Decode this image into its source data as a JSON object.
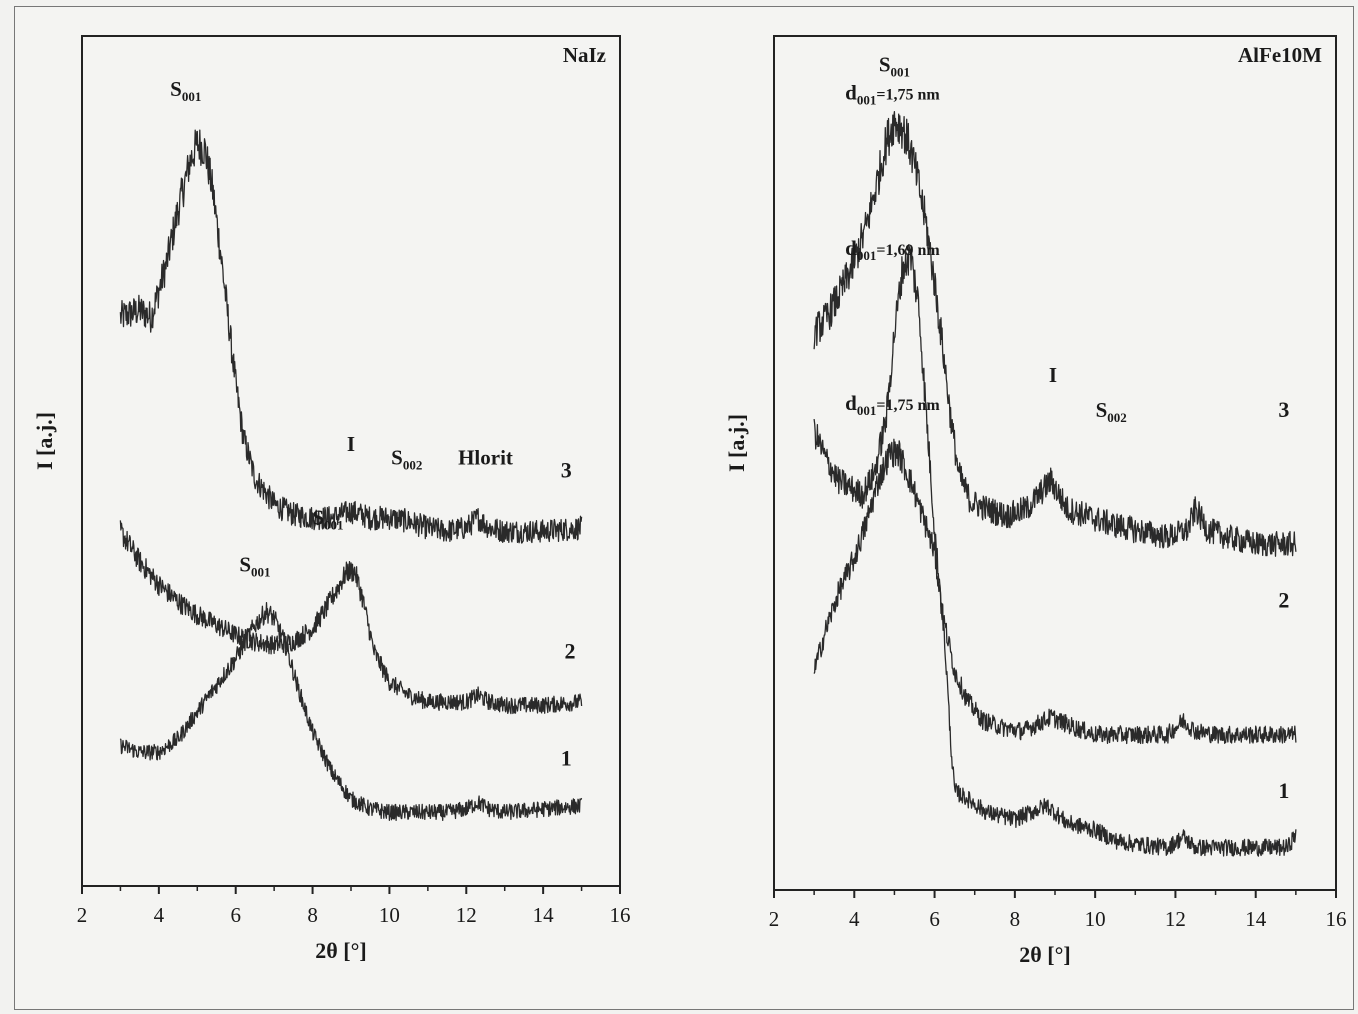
{
  "chart_data": [
    {
      "type": "line",
      "title": "NaIz",
      "xlabel": "2θ [°]",
      "ylabel": "I [a.j.]",
      "xlim": [
        2,
        16
      ],
      "xticks": [
        "2",
        "4",
        "6",
        "8",
        "10",
        "12",
        "14",
        "16"
      ],
      "grid": false,
      "series": [
        {
          "name": "3",
          "x": [
            3.0,
            3.5,
            3.8,
            4.2,
            4.5,
            4.8,
            5.0,
            5.2,
            5.4,
            5.6,
            5.8,
            6.0,
            6.2,
            6.5,
            7.0,
            7.5,
            8.0,
            8.5,
            9.0,
            9.5,
            10.0,
            10.5,
            11.0,
            11.5,
            12.0,
            12.3,
            12.6,
            13.0,
            14.0,
            15.0
          ],
          "y": [
            0.7,
            0.71,
            0.7,
            0.78,
            0.86,
            0.93,
            0.96,
            0.95,
            0.89,
            0.8,
            0.7,
            0.6,
            0.52,
            0.46,
            0.42,
            0.405,
            0.4,
            0.4,
            0.41,
            0.4,
            0.4,
            0.395,
            0.385,
            0.38,
            0.385,
            0.4,
            0.385,
            0.38,
            0.38,
            0.385
          ]
        },
        {
          "name": "2",
          "x": [
            3.0,
            3.5,
            4.0,
            4.5,
            5.0,
            5.5,
            6.0,
            6.5,
            7.0,
            7.5,
            8.0,
            8.3,
            8.6,
            8.9,
            9.1,
            9.3,
            9.6,
            10.0,
            10.5,
            11.0,
            11.5,
            12.0,
            12.3,
            12.6,
            13.0,
            14.0,
            15.0
          ],
          "y": [
            0.38,
            0.335,
            0.3,
            0.275,
            0.255,
            0.24,
            0.225,
            0.215,
            0.21,
            0.215,
            0.235,
            0.26,
            0.29,
            0.32,
            0.32,
            0.28,
            0.2,
            0.155,
            0.135,
            0.125,
            0.125,
            0.125,
            0.135,
            0.125,
            0.12,
            0.12,
            0.125
          ]
        },
        {
          "name": "1",
          "x": [
            3.0,
            3.5,
            4.0,
            4.5,
            5.0,
            5.5,
            6.0,
            6.5,
            6.8,
            7.0,
            7.3,
            7.6,
            8.0,
            8.5,
            9.0,
            9.5,
            10.0,
            10.5,
            11.0,
            11.5,
            12.0,
            12.3,
            12.6,
            13.0,
            14.0,
            15.0
          ],
          "y": [
            0.06,
            0.05,
            0.05,
            0.07,
            0.11,
            0.15,
            0.19,
            0.24,
            0.26,
            0.25,
            0.21,
            0.15,
            0.08,
            0.02,
            -0.02,
            -0.035,
            -0.04,
            -0.04,
            -0.04,
            -0.04,
            -0.035,
            -0.025,
            -0.035,
            -0.04,
            -0.035,
            -0.03
          ]
        }
      ],
      "annotations": [
        {
          "text": "S",
          "sub": "001",
          "x": 4.7,
          "y": 1.03
        },
        {
          "text": "I",
          "x": 9.0,
          "y": 0.5
        },
        {
          "text": "S",
          "sub": "002",
          "x": 10.45,
          "y": 0.48
        },
        {
          "text": "Hlorit",
          "x": 12.5,
          "y": 0.48
        },
        {
          "text": "3",
          "x": 14.6,
          "y": 0.46
        },
        {
          "text": "S",
          "sub": "001",
          "x": 8.4,
          "y": 0.39
        },
        {
          "text": "2",
          "x": 14.7,
          "y": 0.19
        },
        {
          "text": "S",
          "sub": "001",
          "x": 6.5,
          "y": 0.32
        },
        {
          "text": "1",
          "x": 14.6,
          "y": 0.03
        }
      ]
    },
    {
      "type": "line",
      "title": "AlFe10M",
      "xlabel": "2θ [°]",
      "ylabel": "I [a.j.]",
      "xlim": [
        2,
        16
      ],
      "xticks": [
        "2",
        "4",
        "6",
        "8",
        "10",
        "12",
        "14",
        "16"
      ],
      "grid": false,
      "series": [
        {
          "name": "3",
          "x": [
            3.0,
            3.3,
            3.6,
            4.0,
            4.3,
            4.6,
            4.8,
            5.0,
            5.2,
            5.4,
            5.6,
            5.8,
            6.0,
            6.2,
            6.4,
            6.6,
            6.9,
            7.3,
            7.8,
            8.3,
            8.9,
            9.3,
            9.8,
            10.3,
            11.0,
            11.8,
            12.3,
            12.5,
            12.8,
            13.3,
            14.0,
            15.0
          ],
          "y": [
            0.7,
            0.72,
            0.75,
            0.8,
            0.85,
            0.92,
            0.97,
            1.0,
            0.99,
            0.96,
            0.91,
            0.85,
            0.77,
            0.68,
            0.58,
            0.5,
            0.46,
            0.45,
            0.44,
            0.45,
            0.49,
            0.45,
            0.44,
            0.43,
            0.42,
            0.41,
            0.42,
            0.45,
            0.42,
            0.41,
            0.4,
            0.4
          ]
        },
        {
          "name": "2",
          "x": [
            3.0,
            3.3,
            3.6,
            3.9,
            4.2,
            4.5,
            4.8,
            5.0,
            5.2,
            5.4,
            5.6,
            5.8,
            6.0,
            6.2,
            6.5,
            6.8,
            7.2,
            7.7,
            8.2,
            8.9,
            9.5,
            10.0,
            11.0,
            11.8,
            12.2,
            12.5,
            13.0,
            14.0,
            15.0
          ],
          "y": [
            0.56,
            0.52,
            0.49,
            0.48,
            0.47,
            0.5,
            0.58,
            0.7,
            0.79,
            0.81,
            0.74,
            0.58,
            0.42,
            0.3,
            0.22,
            0.18,
            0.15,
            0.14,
            0.135,
            0.155,
            0.14,
            0.13,
            0.13,
            0.13,
            0.15,
            0.135,
            0.13,
            0.13,
            0.13
          ]
        },
        {
          "name": "1",
          "x": [
            3.0,
            3.3,
            3.6,
            4.0,
            4.3,
            4.6,
            4.9,
            5.1,
            5.4,
            5.7,
            6.0,
            6.2,
            6.3,
            6.4,
            6.5,
            6.8,
            7.3,
            8.0,
            8.8,
            9.3,
            10.0,
            10.5,
            11.0,
            11.8,
            12.2,
            12.5,
            13.0,
            14.0,
            14.8,
            15.0
          ],
          "y": [
            0.22,
            0.28,
            0.33,
            0.38,
            0.43,
            0.49,
            0.53,
            0.53,
            0.49,
            0.44,
            0.39,
            0.3,
            0.22,
            0.12,
            0.05,
            0.04,
            0.02,
            0.01,
            0.03,
            0.005,
            -0.005,
            -0.02,
            -0.025,
            -0.03,
            -0.015,
            -0.03,
            -0.03,
            -0.03,
            -0.03,
            -0.01
          ]
        }
      ],
      "annotations": [
        {
          "text": "S",
          "sub": "001",
          "x": 5.0,
          "y": 1.07
        },
        {
          "text": "d",
          "sub": "001",
          "tail": "=1,75 nm",
          "x": 4.95,
          "y": 1.03
        },
        {
          "text": "d",
          "sub": "001",
          "tail": "=1,69 nm",
          "x": 4.95,
          "y": 0.81
        },
        {
          "text": "d",
          "sub": "001",
          "tail": "=1,75 nm",
          "x": 4.95,
          "y": 0.59
        },
        {
          "text": "I",
          "x": 8.95,
          "y": 0.63
        },
        {
          "text": "S",
          "sub": "002",
          "x": 10.4,
          "y": 0.58
        },
        {
          "text": "3",
          "x": 14.7,
          "y": 0.58
        },
        {
          "text": "2",
          "x": 14.7,
          "y": 0.31
        },
        {
          "text": "1",
          "x": 14.7,
          "y": 0.04
        }
      ]
    }
  ]
}
